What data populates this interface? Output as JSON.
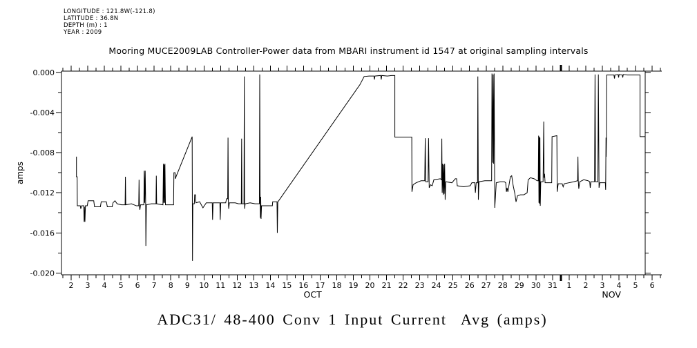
{
  "header": {
    "title": "Mooring MUCE2009LAB Controller-Power data from MBARI instrument id 1547 at original sampling intervals"
  },
  "meta": {
    "lines": [
      "LONGITUDE : 121.8W(-121.8)",
      "LATITUDE : 36.8N",
      "DEPTH (m) : 1",
      "YEAR : 2009"
    ]
  },
  "footer": {
    "title": "ADC31/ 48-400 Conv 1 Input Current  Avg (amps)"
  },
  "chart_data": {
    "type": "line",
    "title": "Mooring MUCE2009LAB Controller-Power data from MBARI instrument id 1547 at original sampling intervals",
    "subtitle": "ADC31/ 48-400 Conv 1 Input Current  Avg (amps)",
    "grid": false,
    "legend": "none",
    "line_color": "#000000",
    "background_color": "#ffffff",
    "x_unit": "day of year segment (Oct 2 = 2.0 ... Oct 31 = 31, Nov d = 31 + d), fractions are time of day",
    "xlim_days": [
      1.9,
      37.1
    ],
    "ylim": [
      -0.02,
      0.0
    ],
    "y_axis": {
      "label": "amps",
      "tick_values": [
        0.0,
        -0.004,
        -0.008,
        -0.012,
        -0.016,
        -0.02
      ],
      "tick_labels": [
        "0.000",
        "-0.004",
        "-0.008",
        "-0.012",
        "-0.016",
        "-0.020"
      ],
      "minor_step": 0.002,
      "min": -0.02,
      "max": 0.0
    },
    "x_axis": {
      "tick_label_days": [
        2.5,
        3.5,
        4.5,
        5.5,
        6.5,
        7.5,
        8.5,
        9.5,
        10.5,
        11.5,
        12.5,
        13.5,
        14.5,
        15.5,
        16.5,
        17.5,
        18.5,
        19.5,
        20.5,
        21.5,
        22.5,
        23.5,
        24.5,
        25.5,
        26.5,
        27.5,
        28.5,
        29.5,
        30.5,
        31.5,
        32.5,
        33.5,
        34.5,
        35.5,
        36.5,
        37.5
      ],
      "tick_labels": [
        "2",
        "3",
        "4",
        "5",
        "6",
        "7",
        "8",
        "9",
        "10",
        "11",
        "12",
        "13",
        "14",
        "15",
        "16",
        "17",
        "18",
        "19",
        "20",
        "21",
        "22",
        "23",
        "24",
        "25",
        "26",
        "27",
        "28",
        "29",
        "30",
        "31",
        "1",
        "2",
        "3",
        "4",
        "5",
        "6"
      ],
      "minor_tick_day_start": 2,
      "minor_tick_day_end": 38,
      "bold_tick_day": 32,
      "month_labels": [
        {
          "text": "OCT",
          "day": 17.05
        },
        {
          "text": "NOV",
          "day": 35.05
        }
      ]
    },
    "series": [
      {
        "name": "ADC31/ 48-400 Conv 1 Input Current Avg (amps)",
        "color": "#000000",
        "points": [
          [
            2.82,
            -0.0084
          ],
          [
            2.82,
            -0.0104
          ],
          [
            2.86,
            -0.0104
          ],
          [
            2.87,
            -0.0133
          ],
          [
            3.05,
            -0.0133
          ],
          [
            3.08,
            -0.0136
          ],
          [
            3.13,
            -0.0133
          ],
          [
            3.26,
            -0.0133
          ],
          [
            3.28,
            -0.0149
          ],
          [
            3.3,
            -0.0134
          ],
          [
            3.33,
            -0.0149
          ],
          [
            3.36,
            -0.0133
          ],
          [
            3.47,
            -0.0133
          ],
          [
            3.52,
            -0.0128
          ],
          [
            3.86,
            -0.0128
          ],
          [
            3.91,
            -0.0134
          ],
          [
            4.26,
            -0.0134
          ],
          [
            4.31,
            -0.0129
          ],
          [
            4.62,
            -0.0129
          ],
          [
            4.68,
            -0.0134
          ],
          [
            4.97,
            -0.0134
          ],
          [
            5.02,
            -0.013
          ],
          [
            5.14,
            -0.0128
          ],
          [
            5.27,
            -0.0131
          ],
          [
            5.53,
            -0.0132
          ],
          [
            5.75,
            -0.0132
          ],
          [
            5.77,
            -0.0104
          ],
          [
            5.79,
            -0.0132
          ],
          [
            6.13,
            -0.0131
          ],
          [
            6.43,
            -0.0133
          ],
          [
            6.57,
            -0.0133
          ],
          [
            6.59,
            -0.0107
          ],
          [
            6.61,
            -0.0133
          ],
          [
            6.64,
            -0.0137
          ],
          [
            6.68,
            -0.0132
          ],
          [
            6.88,
            -0.0132
          ],
          [
            6.9,
            -0.0098
          ],
          [
            6.93,
            -0.013
          ],
          [
            6.96,
            -0.0098
          ],
          [
            6.99,
            -0.0132
          ],
          [
            7.0,
            -0.0173
          ],
          [
            7.03,
            -0.0132
          ],
          [
            7.33,
            -0.0131
          ],
          [
            7.61,
            -0.0131
          ],
          [
            7.63,
            -0.0103
          ],
          [
            7.65,
            -0.0131
          ],
          [
            8.03,
            -0.0132
          ],
          [
            8.06,
            -0.0091
          ],
          [
            8.08,
            -0.013
          ],
          [
            8.11,
            -0.0092
          ],
          [
            8.13,
            -0.013
          ],
          [
            8.15,
            -0.0091
          ],
          [
            8.18,
            -0.0132
          ],
          [
            8.54,
            -0.0132
          ],
          [
            8.67,
            -0.0132
          ],
          [
            8.69,
            -0.01
          ],
          [
            8.76,
            -0.01
          ],
          [
            8.78,
            -0.0106
          ],
          [
            8.84,
            -0.0103
          ],
          [
            9.79,
            -0.0064
          ],
          [
            9.81,
            -0.0188
          ],
          [
            9.83,
            -0.0131
          ],
          [
            9.92,
            -0.0131
          ],
          [
            9.94,
            -0.0122
          ],
          [
            9.99,
            -0.0122
          ],
          [
            10.02,
            -0.013
          ],
          [
            10.24,
            -0.0129
          ],
          [
            10.44,
            -0.0135
          ],
          [
            10.64,
            -0.013
          ],
          [
            11.0,
            -0.013
          ],
          [
            11.02,
            -0.0147
          ],
          [
            11.05,
            -0.013
          ],
          [
            11.46,
            -0.013
          ],
          [
            11.48,
            -0.0147
          ],
          [
            11.51,
            -0.013
          ],
          [
            11.81,
            -0.013
          ],
          [
            11.86,
            -0.0126
          ],
          [
            11.93,
            -0.0126
          ],
          [
            11.95,
            -0.0065
          ],
          [
            11.97,
            -0.0128
          ],
          [
            11.99,
            -0.0136
          ],
          [
            12.03,
            -0.013
          ],
          [
            12.38,
            -0.013
          ],
          [
            12.58,
            -0.0131
          ],
          [
            12.75,
            -0.0131
          ],
          [
            12.77,
            -0.0066
          ],
          [
            12.79,
            -0.0131
          ],
          [
            12.91,
            -0.0131
          ],
          [
            12.93,
            -0.0004
          ],
          [
            12.95,
            -0.0136
          ],
          [
            12.98,
            -0.0131
          ],
          [
            13.28,
            -0.013
          ],
          [
            13.58,
            -0.0131
          ],
          [
            13.84,
            -0.0131
          ],
          [
            13.86,
            -0.0002
          ],
          [
            13.88,
            -0.0119
          ],
          [
            13.9,
            -0.0145
          ],
          [
            13.92,
            -0.0124
          ],
          [
            13.94,
            -0.0146
          ],
          [
            13.97,
            -0.0133
          ],
          [
            14.3,
            -0.0133
          ],
          [
            14.62,
            -0.0133
          ],
          [
            14.64,
            -0.0129
          ],
          [
            14.9,
            -0.0129
          ],
          [
            14.92,
            -0.016
          ],
          [
            14.95,
            -0.0129
          ],
          [
            15.0,
            -0.0128
          ],
          [
            19.9,
            -0.0012
          ],
          [
            20.15,
            -0.0004
          ],
          [
            20.45,
            -0.00035
          ],
          [
            20.74,
            -0.00035
          ],
          [
            20.77,
            -0.0007
          ],
          [
            20.8,
            -0.00035
          ],
          [
            21.15,
            -0.0003
          ],
          [
            21.18,
            -0.0007
          ],
          [
            21.21,
            -0.0003
          ],
          [
            21.55,
            -0.00035
          ],
          [
            21.8,
            -0.0003
          ],
          [
            22.0,
            -0.0003
          ],
          [
            22.0,
            -0.00645
          ],
          [
            23.02,
            -0.00645
          ],
          [
            23.03,
            -0.0119
          ],
          [
            23.1,
            -0.0112
          ],
          [
            23.28,
            -0.011
          ],
          [
            23.58,
            -0.0108
          ],
          [
            23.8,
            -0.0108
          ],
          [
            23.83,
            -0.00655
          ],
          [
            23.86,
            -0.0109
          ],
          [
            24.0,
            -0.0109
          ],
          [
            24.03,
            -0.00655
          ],
          [
            24.07,
            -0.0115
          ],
          [
            24.15,
            -0.0112
          ],
          [
            24.25,
            -0.0113
          ],
          [
            24.35,
            -0.0107
          ],
          [
            24.74,
            -0.0106
          ],
          [
            24.81,
            -0.0107
          ],
          [
            24.83,
            -0.0066
          ],
          [
            24.85,
            -0.012
          ],
          [
            24.88,
            -0.0091
          ],
          [
            24.91,
            -0.0122
          ],
          [
            24.94,
            -0.0092
          ],
          [
            24.97,
            -0.0121
          ],
          [
            25.0,
            -0.0091
          ],
          [
            25.03,
            -0.0127
          ],
          [
            25.07,
            -0.0109
          ],
          [
            25.44,
            -0.011
          ],
          [
            25.64,
            -0.0106
          ],
          [
            25.72,
            -0.0106
          ],
          [
            25.76,
            -0.0113
          ],
          [
            26.14,
            -0.0114
          ],
          [
            26.54,
            -0.0113
          ],
          [
            26.64,
            -0.011
          ],
          [
            26.82,
            -0.011
          ],
          [
            26.85,
            -0.012
          ],
          [
            26.9,
            -0.011
          ],
          [
            26.98,
            -0.011
          ],
          [
            27.0,
            -0.0004
          ],
          [
            27.03,
            -0.0127
          ],
          [
            27.07,
            -0.0109
          ],
          [
            27.42,
            -0.0108
          ],
          [
            27.72,
            -0.0108
          ],
          [
            27.83,
            -0.0108
          ],
          [
            27.85,
            -0.0001
          ],
          [
            27.88,
            -0.009
          ],
          [
            27.92,
            -0.0002
          ],
          [
            27.95,
            -0.0091
          ],
          [
            27.98,
            -0.0001
          ],
          [
            28.02,
            -0.0135
          ],
          [
            28.06,
            -0.0124
          ],
          [
            28.11,
            -0.011
          ],
          [
            28.35,
            -0.0109
          ],
          [
            28.6,
            -0.0109
          ],
          [
            28.68,
            -0.011
          ],
          [
            28.72,
            -0.0119
          ],
          [
            28.76,
            -0.0115
          ],
          [
            28.81,
            -0.0119
          ],
          [
            28.88,
            -0.0112
          ],
          [
            28.96,
            -0.0104
          ],
          [
            29.04,
            -0.0103
          ],
          [
            29.13,
            -0.0113
          ],
          [
            29.23,
            -0.0121
          ],
          [
            29.3,
            -0.0129
          ],
          [
            29.39,
            -0.0123
          ],
          [
            29.57,
            -0.0122
          ],
          [
            29.77,
            -0.0122
          ],
          [
            29.97,
            -0.012
          ],
          [
            30.03,
            -0.0107
          ],
          [
            30.17,
            -0.0105
          ],
          [
            30.39,
            -0.0106
          ],
          [
            30.57,
            -0.0108
          ],
          [
            30.64,
            -0.0108
          ],
          [
            30.66,
            -0.0063
          ],
          [
            30.68,
            -0.013
          ],
          [
            30.7,
            -0.0064
          ],
          [
            30.72,
            -0.0131
          ],
          [
            30.74,
            -0.0065
          ],
          [
            30.76,
            -0.0133
          ],
          [
            30.79,
            -0.0109
          ],
          [
            30.93,
            -0.0109
          ],
          [
            30.97,
            -0.0049
          ],
          [
            30.99,
            -0.0105
          ],
          [
            31.02,
            -0.0101
          ],
          [
            31.05,
            -0.011
          ],
          [
            31.28,
            -0.011
          ],
          [
            31.45,
            -0.011
          ],
          [
            31.47,
            -0.0064
          ],
          [
            31.76,
            -0.0063
          ],
          [
            31.78,
            -0.0119
          ],
          [
            31.84,
            -0.0111
          ],
          [
            32.08,
            -0.0111
          ],
          [
            32.14,
            -0.0114
          ],
          [
            32.2,
            -0.0111
          ],
          [
            32.48,
            -0.011
          ],
          [
            32.78,
            -0.0109
          ],
          [
            33.01,
            -0.0108
          ],
          [
            33.03,
            -0.0084
          ],
          [
            33.05,
            -0.0108
          ],
          [
            33.08,
            -0.0116
          ],
          [
            33.14,
            -0.0109
          ],
          [
            33.38,
            -0.0107
          ],
          [
            33.64,
            -0.0108
          ],
          [
            33.74,
            -0.0109
          ],
          [
            33.77,
            -0.0115
          ],
          [
            33.81,
            -0.0109
          ],
          [
            34.03,
            -0.0109
          ],
          [
            34.06,
            -0.0002
          ],
          [
            34.09,
            -0.0109
          ],
          [
            34.23,
            -0.0109
          ],
          [
            34.26,
            -0.0002
          ],
          [
            34.3,
            -0.0115
          ],
          [
            34.35,
            -0.011
          ],
          [
            34.6,
            -0.011
          ],
          [
            34.68,
            -0.011
          ],
          [
            34.7,
            -0.0117
          ],
          [
            34.72,
            -0.0065
          ],
          [
            34.73,
            -0.0084
          ],
          [
            34.75,
            -0.0065
          ],
          [
            34.76,
            -0.00025
          ],
          [
            35.0,
            -0.00025
          ],
          [
            35.2,
            -0.00025
          ],
          [
            35.23,
            -0.0006
          ],
          [
            35.26,
            -0.00025
          ],
          [
            35.45,
            -0.0002
          ],
          [
            35.48,
            -0.0005
          ],
          [
            35.51,
            -0.0002
          ],
          [
            35.7,
            -0.00025
          ],
          [
            35.73,
            -0.0005
          ],
          [
            35.76,
            -0.0002
          ],
          [
            36.0,
            -0.00025
          ],
          [
            36.3,
            -0.00025
          ],
          [
            36.74,
            -0.00025
          ],
          [
            36.77,
            -0.00025
          ],
          [
            36.77,
            -0.0064
          ],
          [
            37.08,
            -0.0064
          ]
        ]
      }
    ]
  }
}
